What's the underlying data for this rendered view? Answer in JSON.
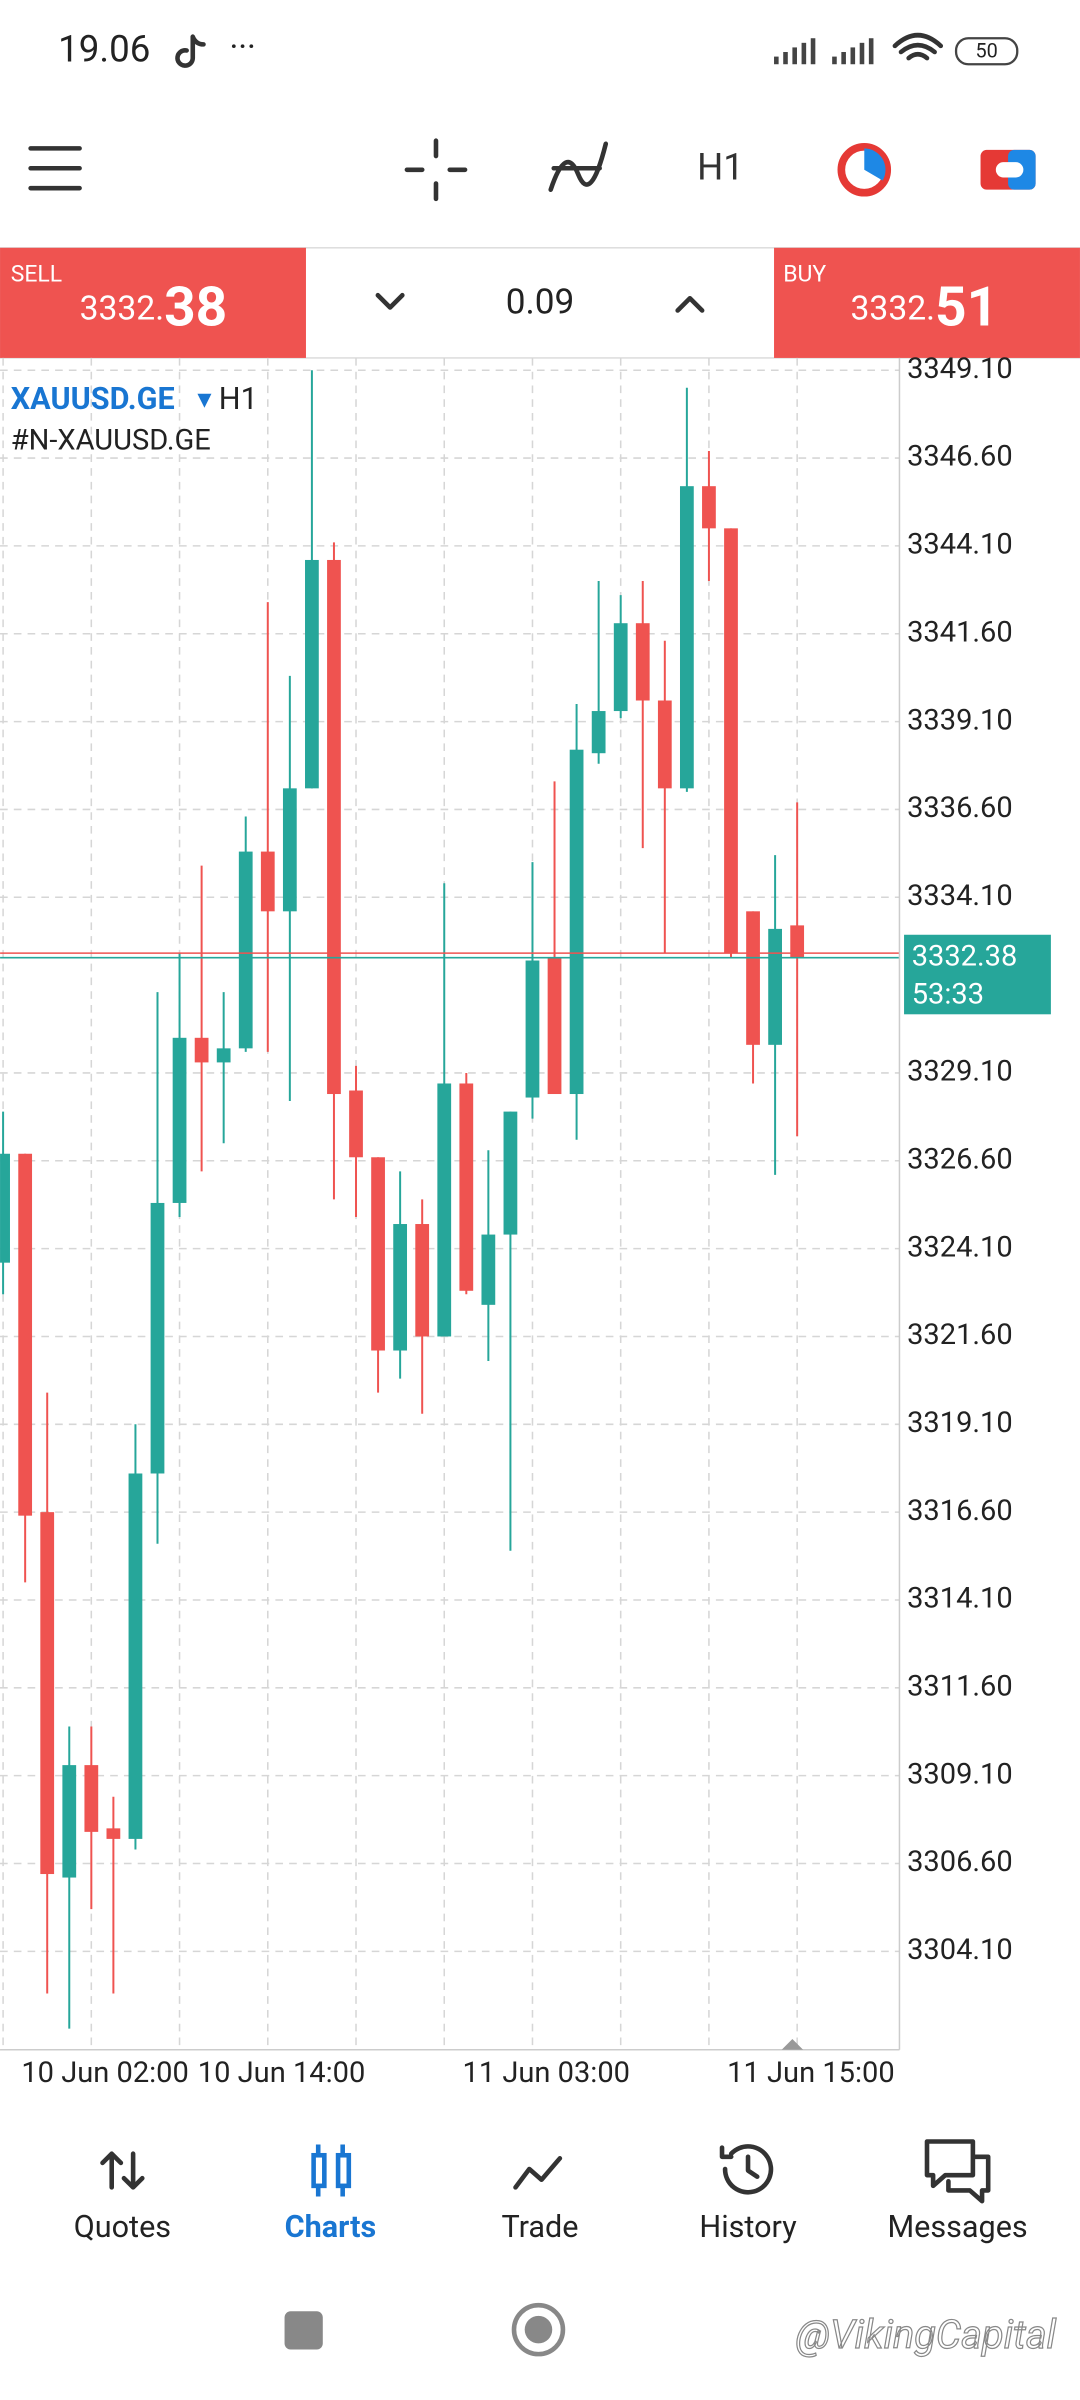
{
  "status_bar": {
    "time": "19.06",
    "battery": "50"
  },
  "toolbar": {
    "timeframe": "H1"
  },
  "trade_panel": {
    "sell_label": "SELL",
    "sell_price_main": "3332.",
    "sell_price_big": "38",
    "volume": "0.09",
    "buy_label": "BUY",
    "buy_price_main": "3332.",
    "buy_price_big": "51"
  },
  "chart_data": {
    "type": "candlestick",
    "symbol": "XAUUSD.GE",
    "timeframe": "H1",
    "description": "#N-XAUUSD.GE",
    "up_color": "#26a69a",
    "down_color": "#ef5350",
    "grid": true,
    "categories": [
      null,
      null,
      null,
      null,
      "10 Jun 02:00",
      null,
      null,
      null,
      null,
      null,
      null,
      null,
      "10 Jun 14:00",
      null,
      null,
      null,
      null,
      null,
      null,
      null,
      null,
      null,
      null,
      null,
      "11 Jun 03:00",
      null,
      null,
      null,
      null,
      null,
      null,
      null,
      null,
      null,
      null,
      null,
      "11 Jun 15:00"
    ],
    "open": [
      3323.7,
      3326.8,
      3316.6,
      3306.2,
      3309.4,
      3307.6,
      3307.3,
      3317.7,
      3325.4,
      3330.1,
      3329.4,
      3329.8,
      3335.4,
      3333.7,
      3337.2,
      3343.7,
      3328.6,
      3326.7,
      3321.2,
      3324.8,
      3321.6,
      3328.8,
      3322.5,
      3324.5,
      3328.4,
      3332.4,
      3328.5,
      3338.2,
      3339.4,
      3341.9,
      3339.7,
      3337.2,
      3345.8,
      3344.6,
      3333.7,
      3329.9,
      3333.3
    ],
    "high": [
      3328.0,
      3326.8,
      3320.0,
      3310.5,
      3310.5,
      3308.5,
      3319.1,
      3331.4,
      3332.5,
      3335.0,
      3331.4,
      3336.4,
      3342.5,
      3340.4,
      3349.1,
      3344.2,
      3329.3,
      3326.7,
      3326.3,
      3325.5,
      3334.5,
      3329.1,
      3326.9,
      3328.0,
      3335.1,
      3337.4,
      3339.6,
      3343.1,
      3342.7,
      3343.1,
      3341.4,
      3348.6,
      3346.8,
      3344.6,
      3333.7,
      3335.3,
      3336.8
    ],
    "low": [
      3322.8,
      3314.6,
      3302.9,
      3301.9,
      3305.3,
      3302.9,
      3307.0,
      3315.7,
      3325.0,
      3326.3,
      3327.1,
      3329.7,
      3329.7,
      3328.3,
      3337.2,
      3325.5,
      3325.0,
      3320.0,
      3320.4,
      3319.4,
      3321.6,
      3322.8,
      3320.9,
      3315.5,
      3327.8,
      3328.5,
      3327.2,
      3337.9,
      3339.2,
      3335.5,
      3332.5,
      3337.1,
      3343.1,
      3332.4,
      3328.8,
      3326.2,
      3327.3
    ],
    "close": [
      3326.8,
      3316.5,
      3306.3,
      3309.4,
      3307.5,
      3307.3,
      3317.7,
      3325.4,
      3330.1,
      3329.4,
      3329.8,
      3335.4,
      3333.7,
      3337.2,
      3343.7,
      3328.5,
      3326.7,
      3321.2,
      3324.8,
      3321.6,
      3328.8,
      3322.9,
      3324.5,
      3328.0,
      3332.3,
      3328.5,
      3338.3,
      3339.4,
      3341.9,
      3339.7,
      3337.2,
      3345.8,
      3344.6,
      3332.5,
      3329.9,
      3333.2,
      3332.4
    ],
    "ylim": [
      3301.3,
      3349.45
    ],
    "yticks": [
      {
        "value": 3304.1,
        "label": "3304.10"
      },
      {
        "value": 3306.6,
        "label": "3306.60"
      },
      {
        "value": 3309.1,
        "label": "3309.10"
      },
      {
        "value": 3311.6,
        "label": "3311.60"
      },
      {
        "value": 3314.1,
        "label": "3314.10"
      },
      {
        "value": 3316.6,
        "label": "3316.60"
      },
      {
        "value": 3319.1,
        "label": "3319.10"
      },
      {
        "value": 3321.6,
        "label": "3321.60"
      },
      {
        "value": 3324.1,
        "label": "3324.10"
      },
      {
        "value": 3326.6,
        "label": "3326.60"
      },
      {
        "value": 3329.1,
        "label": "3329.10"
      },
      {
        "value": 3334.1,
        "label": "3334.10"
      },
      {
        "value": 3336.6,
        "label": "3336.60"
      },
      {
        "value": 3339.1,
        "label": "3339.10"
      },
      {
        "value": 3341.6,
        "label": "3341.60"
      },
      {
        "value": 3344.1,
        "label": "3344.10"
      },
      {
        "value": 3346.6,
        "label": "3346.60"
      },
      {
        "value": 3349.1,
        "label": "3349.10"
      }
    ],
    "current_price": {
      "value": 3332.38,
      "label": "3332.38"
    },
    "ask_price": 3332.51,
    "countdown": "53:33"
  },
  "nav": {
    "tabs": [
      "Quotes",
      "Charts",
      "Trade",
      "History",
      "Messages"
    ],
    "active": 1
  },
  "watermark": "@VikingCapital"
}
